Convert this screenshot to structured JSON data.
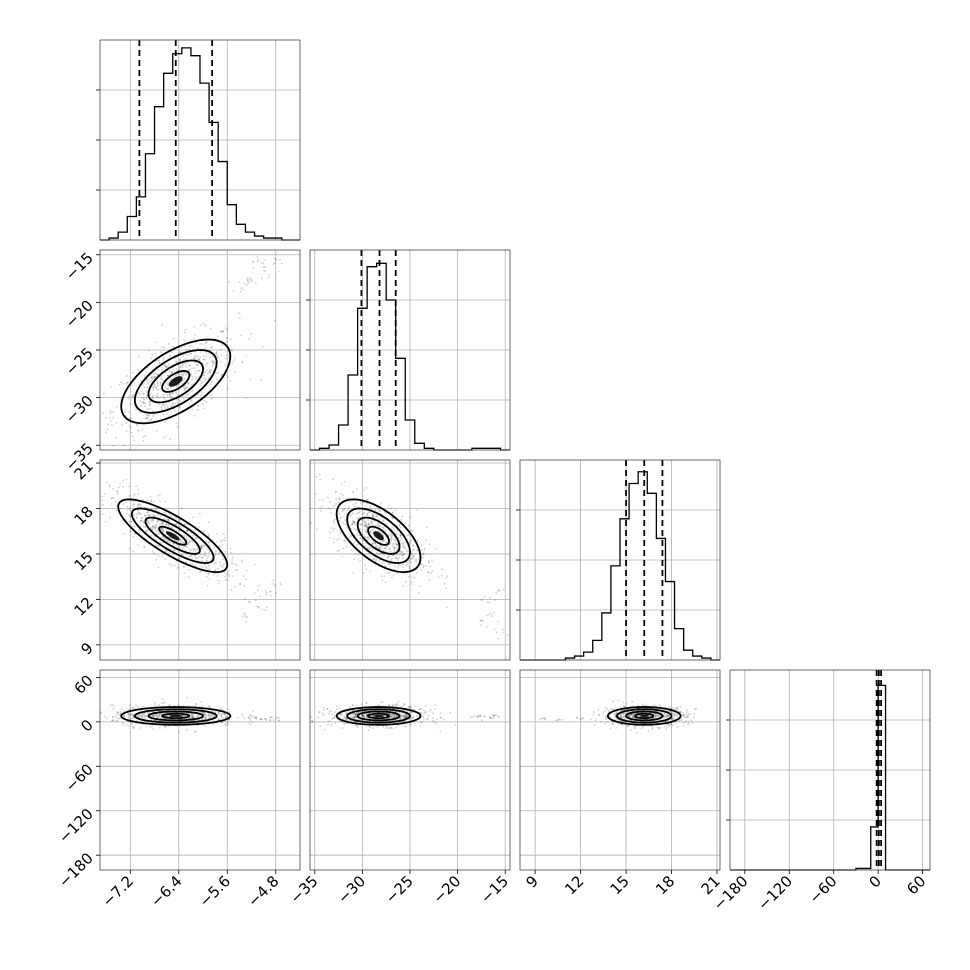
{
  "chart_data": {
    "type": "corner",
    "grid": true,
    "parameters": [
      {
        "range": [
          -7.7,
          -4.4
        ],
        "ticks": [
          -7.2,
          -6.4,
          -5.6,
          -4.8
        ],
        "tick_labels": [
          "−7.2",
          "−6.4",
          "−5.6",
          "−4.8"
        ],
        "hist_edges": [
          -7.7,
          -7.55,
          -7.4,
          -7.25,
          -7.1,
          -6.95,
          -6.8,
          -6.65,
          -6.5,
          -6.35,
          -6.2,
          -6.05,
          -5.9,
          -5.75,
          -5.6,
          -5.45,
          -5.3,
          -5.15,
          -5.0,
          -4.85,
          -4.7,
          -4.55,
          -4.4
        ],
        "hist_counts": [
          0,
          1,
          4,
          12,
          22,
          44,
          68,
          85,
          95,
          98,
          94,
          80,
          60,
          40,
          18,
          8,
          4,
          2,
          1,
          1,
          0,
          0
        ],
        "quantiles": [
          -7.05,
          -6.45,
          -5.85
        ],
        "ylim": [
          0,
          102
        ]
      },
      {
        "range": [
          -35.5,
          -14.5
        ],
        "ticks": [
          -35,
          -30,
          -25,
          -20,
          -15
        ],
        "tick_labels": [
          "−35",
          "−30",
          "−25",
          "−20",
          "−15"
        ],
        "hist_edges": [
          -35.5,
          -34.5,
          -33.5,
          -32.5,
          -31.5,
          -30.5,
          -29.5,
          -28.5,
          -27.5,
          -26.5,
          -25.5,
          -24.5,
          -23.5,
          -22.5,
          -21.5,
          -20.5,
          -19.5,
          -18.5,
          -17.5,
          -16.5,
          -15.5,
          -14.5
        ],
        "hist_counts": [
          0,
          1,
          3,
          15,
          45,
          85,
          110,
          112,
          90,
          55,
          18,
          4,
          1,
          0,
          0,
          0,
          0,
          1,
          1,
          1,
          0
        ],
        "quantiles": [
          -30.1,
          -28.2,
          -26.5
        ],
        "ylim": [
          0,
          120
        ]
      },
      {
        "range": [
          8.0,
          21.2
        ],
        "ticks": [
          9,
          12,
          15,
          18,
          21
        ],
        "tick_labels": [
          "9",
          "12",
          "15",
          "18",
          "21"
        ],
        "hist_edges": [
          8.0,
          8.6,
          9.2,
          9.8,
          10.4,
          11.0,
          11.6,
          12.2,
          12.8,
          13.4,
          14.0,
          14.6,
          15.2,
          15.8,
          16.4,
          17.0,
          17.6,
          18.2,
          18.8,
          19.4,
          20.0,
          20.6,
          21.2
        ],
        "hist_counts": [
          0,
          0,
          0,
          0,
          0,
          1,
          2,
          4,
          10,
          24,
          48,
          72,
          90,
          96,
          85,
          62,
          40,
          16,
          5,
          2,
          1,
          0
        ],
        "quantiles": [
          15.0,
          16.2,
          17.4
        ],
        "ylim": [
          0,
          102
        ]
      },
      {
        "range": [
          -200,
          70
        ],
        "ticks": [
          -180,
          -120,
          -60,
          0,
          60
        ],
        "tick_labels": [
          "−180",
          "−120",
          "−60",
          "0",
          "60"
        ],
        "hist_edges": [
          -200,
          -190,
          -180,
          -170,
          -160,
          -150,
          -140,
          -130,
          -120,
          -110,
          -100,
          -90,
          -80,
          -70,
          -60,
          -50,
          -40,
          -30,
          -20,
          -10,
          0,
          10,
          20,
          30,
          40,
          50,
          60,
          70
        ],
        "hist_counts": [
          0,
          0,
          0,
          0,
          0,
          0,
          0,
          0,
          0,
          0,
          0,
          0,
          0,
          0,
          0,
          0,
          0,
          1,
          1,
          28,
          120,
          0,
          0,
          0,
          0,
          0,
          0
        ],
        "quantiles": [
          -2,
          1,
          4
        ],
        "ylim": [
          0,
          130
        ]
      }
    ],
    "pairs": [
      {
        "x": 0,
        "y": 1,
        "mean": [
          -6.45,
          -28.3
        ],
        "sd": [
          0.45,
          2.2
        ],
        "rho": 0.6,
        "contours": [
          {
            "level": 0.5,
            "mean": [
              -6.45,
              -28.3
            ],
            "sd": [
              0.45,
              2.2
            ]
          },
          {
            "level": 1.0,
            "mean": [
              -6.45,
              -28.3
            ],
            "sd": [
              0.45,
              2.2
            ]
          },
          {
            "level": 1.5,
            "mean": [
              -6.45,
              -28.3
            ],
            "sd": [
              0.45,
              2.2
            ]
          },
          {
            "level": 2.0,
            "mean": [
              -6.45,
              -28.3
            ],
            "sd": [
              0.45,
              2.2
            ]
          }
        ],
        "outliers": [
          [
            -5.2,
            -17.5
          ],
          [
            -5.0,
            -16.0
          ],
          [
            -4.9,
            -17.0
          ],
          [
            -5.4,
            -18.2
          ],
          [
            -5.1,
            -15.4
          ],
          [
            -4.8,
            -15.8
          ],
          [
            -5.3,
            -17.8
          ]
        ]
      },
      {
        "x": 0,
        "y": 2,
        "mean": [
          -6.5,
          16.2
        ],
        "sd": [
          0.45,
          1.2
        ],
        "rho": -0.8,
        "contours": [
          {
            "level": 0.5,
            "mean": [
              -6.5,
              16.2
            ],
            "sd": [
              0.45,
              1.2
            ]
          },
          {
            "level": 1.0,
            "mean": [
              -6.5,
              16.2
            ],
            "sd": [
              0.45,
              1.2
            ]
          },
          {
            "level": 1.5,
            "mean": [
              -6.5,
              16.2
            ],
            "sd": [
              0.45,
              1.2
            ]
          },
          {
            "level": 2.0,
            "mean": [
              -6.5,
              16.2
            ],
            "sd": [
              0.45,
              1.2
            ]
          }
        ],
        "outliers": [
          [
            -5.2,
            12.0
          ],
          [
            -5.0,
            11.5
          ],
          [
            -4.9,
            12.5
          ],
          [
            -5.3,
            10.8
          ],
          [
            -4.8,
            13.0
          ]
        ]
      },
      {
        "x": 1,
        "y": 2,
        "mean": [
          -28.3,
          16.2
        ],
        "sd": [
          2.2,
          1.2
        ],
        "rho": -0.6,
        "contours": [
          {
            "level": 0.5,
            "mean": [
              -28.3,
              16.2
            ],
            "sd": [
              2.2,
              1.2
            ]
          },
          {
            "level": 1.0,
            "mean": [
              -28.3,
              16.2
            ],
            "sd": [
              2.2,
              1.2
            ]
          },
          {
            "level": 1.5,
            "mean": [
              -28.3,
              16.2
            ],
            "sd": [
              2.2,
              1.2
            ]
          },
          {
            "level": 2.0,
            "mean": [
              -28.3,
              16.2
            ],
            "sd": [
              2.2,
              1.2
            ]
          }
        ],
        "outliers": [
          [
            -17.0,
            12.0
          ],
          [
            -16.5,
            11.0
          ],
          [
            -16.0,
            12.5
          ],
          [
            -17.5,
            10.5
          ],
          [
            -15.8,
            9.8
          ]
        ]
      },
      {
        "x": 0,
        "y": 3,
        "mean": [
          -6.45,
          8.0
        ],
        "sd": [
          0.45,
          6.0
        ],
        "rho": 0.0,
        "contours": [
          {
            "level": 0.5,
            "mean": [
              -6.45,
              8.0
            ],
            "sd": [
              0.45,
              6.0
            ]
          },
          {
            "level": 1.0,
            "mean": [
              -6.45,
              8.0
            ],
            "sd": [
              0.45,
              6.0
            ]
          },
          {
            "level": 1.5,
            "mean": [
              -6.45,
              8.0
            ],
            "sd": [
              0.45,
              6.0
            ]
          },
          {
            "level": 2.0,
            "mean": [
              -6.45,
              8.0
            ],
            "sd": [
              0.45,
              6.0
            ]
          }
        ],
        "outliers": [
          [
            -5.2,
            5
          ],
          [
            -5.0,
            3
          ],
          [
            -4.8,
            6
          ],
          [
            -4.9,
            2
          ]
        ]
      },
      {
        "x": 1,
        "y": 3,
        "mean": [
          -28.3,
          8.0
        ],
        "sd": [
          2.2,
          6.0
        ],
        "rho": 0.0,
        "contours": [
          {
            "level": 0.5,
            "mean": [
              -28.3,
              8.0
            ],
            "sd": [
              2.2,
              6.0
            ]
          },
          {
            "level": 1.0,
            "mean": [
              -28.3,
              8.0
            ],
            "sd": [
              2.2,
              6.0
            ]
          },
          {
            "level": 1.5,
            "mean": [
              -28.3,
              8.0
            ],
            "sd": [
              2.2,
              6.0
            ]
          },
          {
            "level": 2.0,
            "mean": [
              -28.3,
              8.0
            ],
            "sd": [
              2.2,
              6.0
            ]
          }
        ],
        "outliers": [
          [
            -17.5,
            8
          ],
          [
            -16.5,
            6
          ],
          [
            -16.0,
            9
          ],
          [
            -18.0,
            7
          ]
        ]
      },
      {
        "x": 2,
        "y": 3,
        "mean": [
          16.2,
          8.0
        ],
        "sd": [
          1.2,
          6.0
        ],
        "rho": 0.0,
        "contours": [
          {
            "level": 0.5,
            "mean": [
              16.2,
              8.0
            ],
            "sd": [
              1.2,
              6.0
            ]
          },
          {
            "level": 1.0,
            "mean": [
              16.2,
              8.0
            ],
            "sd": [
              1.2,
              6.0
            ]
          },
          {
            "level": 1.5,
            "mean": [
              16.2,
              8.0
            ],
            "sd": [
              1.2,
              6.0
            ]
          },
          {
            "level": 2.0,
            "mean": [
              16.2,
              8.0
            ],
            "sd": [
              1.2,
              6.0
            ]
          }
        ],
        "outliers": [
          [
            9.5,
            4
          ],
          [
            10.5,
            3
          ],
          [
            12.0,
            5
          ]
        ]
      }
    ]
  }
}
